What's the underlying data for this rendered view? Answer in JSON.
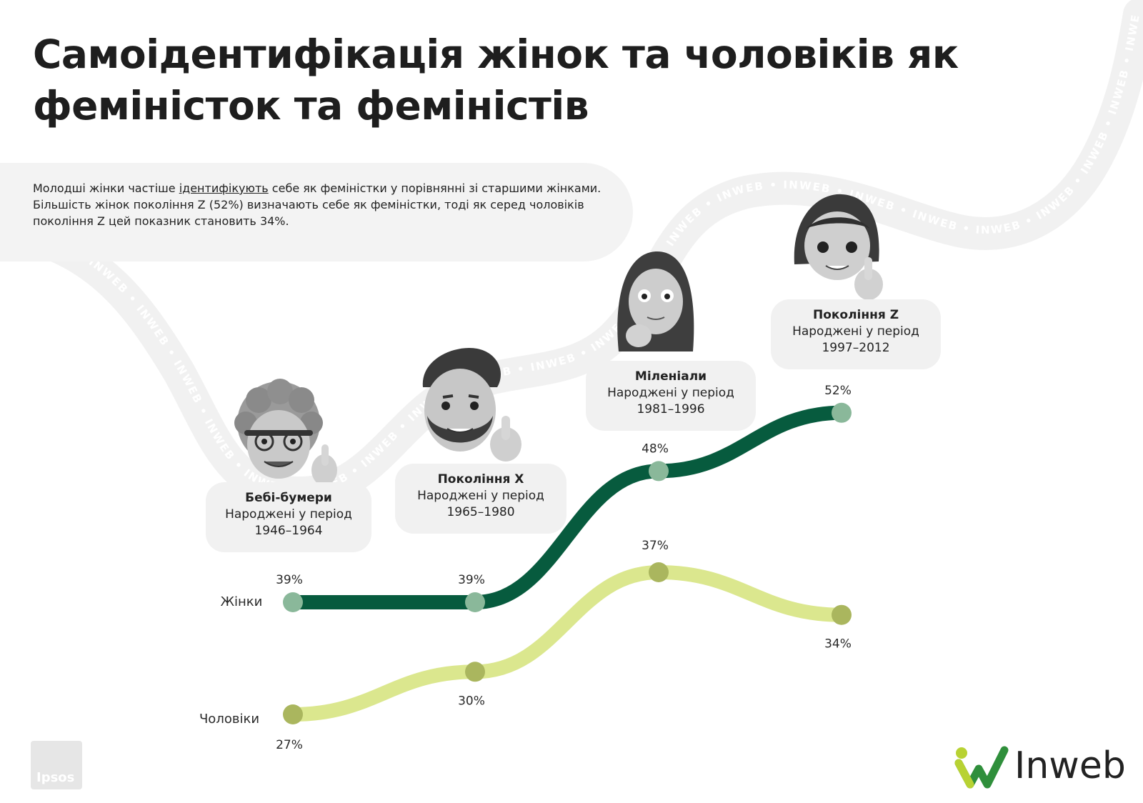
{
  "title": "Самоідентифікація жінок та чоловіків як феміністок та феміністів",
  "intro": {
    "before": "Молодші жінки частіше ",
    "underlined": "ідентифікують",
    "after": " себе як феміністки у порівнянні зі старшими жінками. Більшість жінок покоління Z (52%) визначають себе як феміністки, тоді як серед чоловіків покоління Z цей показник становить 34%."
  },
  "watermark": "INWEB",
  "generations": [
    {
      "name": "Бебі-бумери",
      "subtitle": "Народжені у період",
      "years": "1946–1964",
      "avatar": "boomer-avatar"
    },
    {
      "name": "Покоління X",
      "subtitle": "Народжені у період",
      "years": "1965–1980",
      "avatar": "gen-x-avatar"
    },
    {
      "name": "Міленіали",
      "subtitle": "Народжені у період",
      "years": "1981–1996",
      "avatar": "millennial-avatar"
    },
    {
      "name": "Покоління Z",
      "subtitle": "Народжені у період",
      "years": "1997–2012",
      "avatar": "gen-z-avatar"
    }
  ],
  "chart_data": {
    "type": "line",
    "categories": [
      "Бебі-бумери",
      "Покоління X",
      "Міленіали",
      "Покоління Z"
    ],
    "series": [
      {
        "name": "Жінки",
        "values": [
          39,
          39,
          48,
          52
        ],
        "labels": [
          "39%",
          "39%",
          "48%",
          "52%"
        ],
        "color": "#075b3e",
        "dot_color": "#8ab89a"
      },
      {
        "name": "Чоловіки",
        "values": [
          27,
          30,
          37,
          34
        ],
        "labels": [
          "27%",
          "30%",
          "37%",
          "34%"
        ],
        "color": "#dbe78e",
        "dot_color": "#aab65e"
      }
    ],
    "unit": "%",
    "grid": false
  },
  "source": "Ipsos",
  "brand": {
    "name": "Inweb",
    "green": "#2f8f3b",
    "lime": "#b8d233"
  }
}
